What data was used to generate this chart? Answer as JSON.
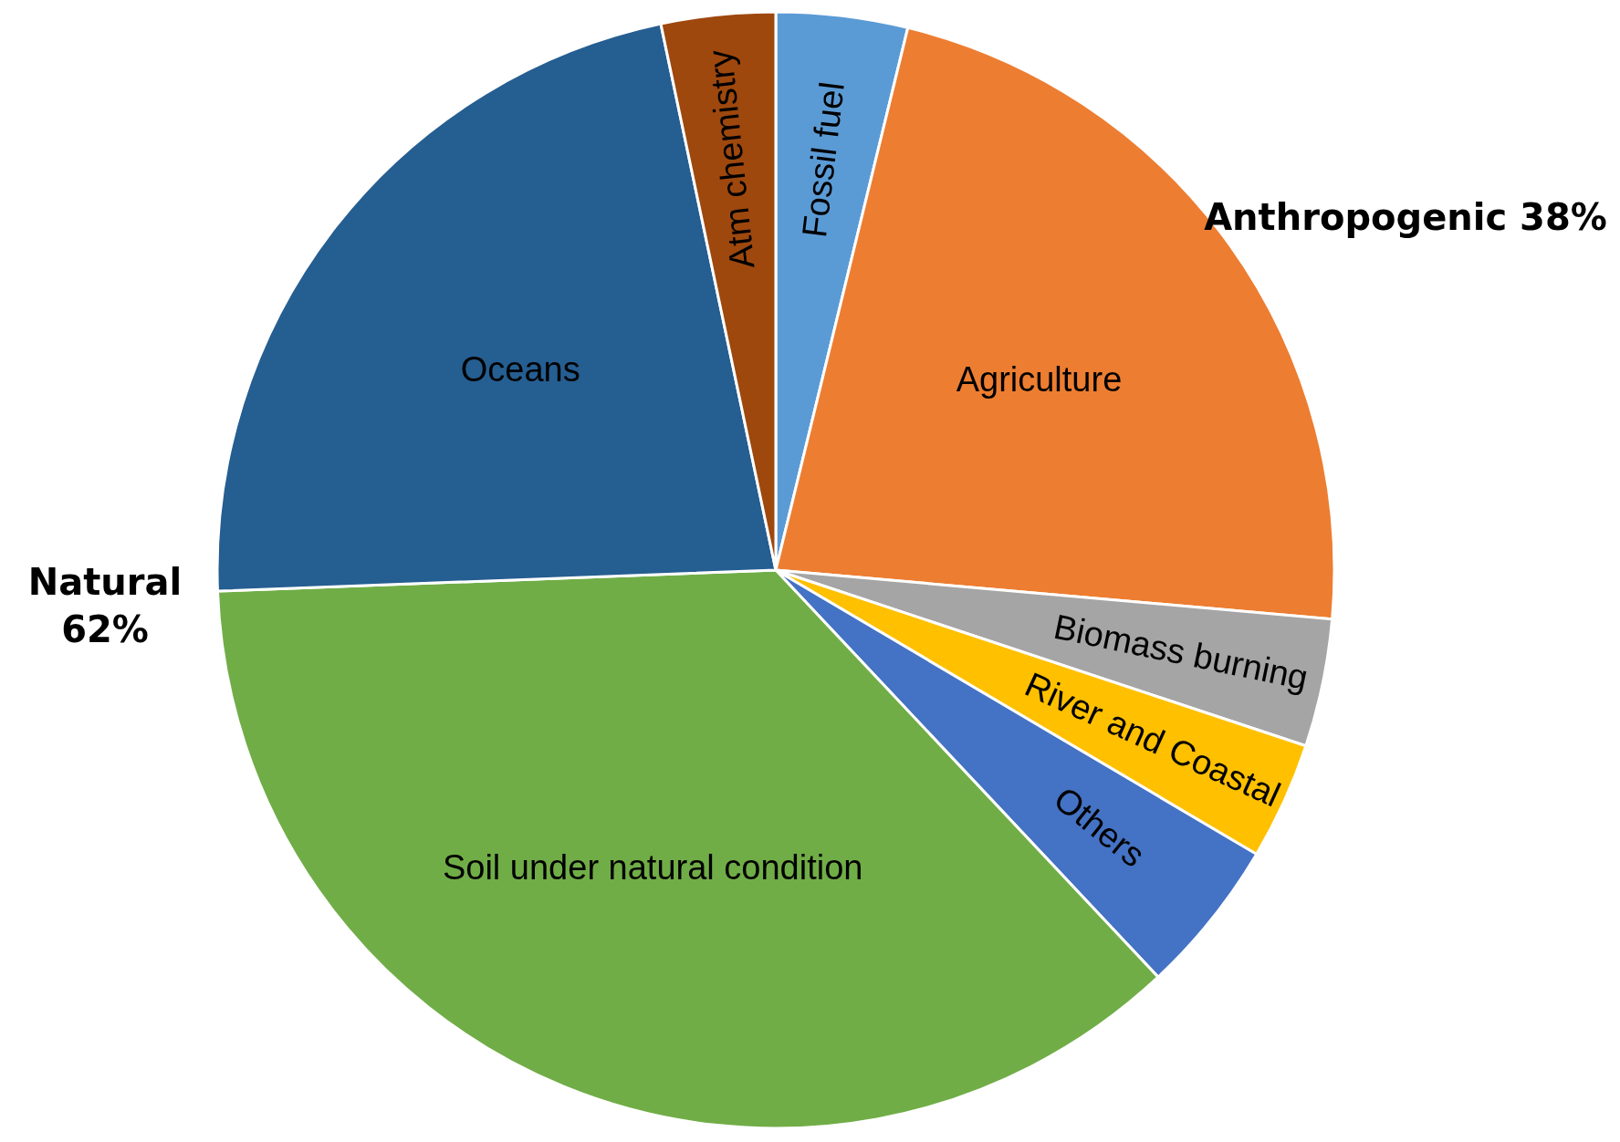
{
  "chart_data": {
    "type": "pie",
    "categories": [
      "Fossil fuel",
      "Agriculture",
      "Biomass burning",
      "River and Coastal",
      "Others",
      "Soil under natural condition",
      "Oceans",
      "Atm chemistry"
    ],
    "values": [
      3.8,
      22.6,
      3.7,
      3.4,
      4.5,
      36.4,
      22.3,
      3.3
    ],
    "colors": [
      "#5b9bd5",
      "#ed7d31",
      "#a5a5a5",
      "#ffc000",
      "#4472c4",
      "#70ad47",
      "#255e91",
      "#9e480e"
    ],
    "annotations": [
      "Anthropogenic 38%",
      "Natural 62%"
    ]
  }
}
